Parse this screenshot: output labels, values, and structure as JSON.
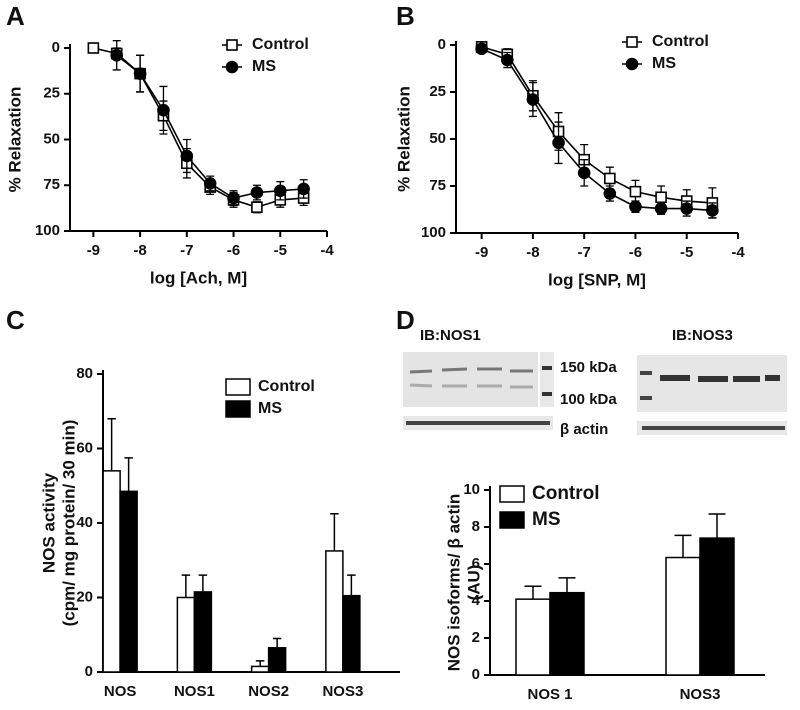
{
  "chart_data": [
    {
      "type": "line",
      "panel_label": "A",
      "xlabel": "log [Ach, M]",
      "ylabel": "% Relaxation",
      "x": [
        -9,
        -8.5,
        -8,
        -7.5,
        -7,
        -6.5,
        -6,
        -5.5,
        -5,
        -4.5
      ],
      "series": [
        {
          "name": "Control",
          "color": "#000000",
          "marker": "square",
          "fill": "#ffffff",
          "values": [
            0,
            3,
            14,
            37,
            63,
            76,
            83,
            87,
            83,
            82
          ],
          "errors": [
            0,
            3,
            10,
            8,
            8,
            4,
            4,
            3,
            4,
            4
          ]
        },
        {
          "name": "MS",
          "color": "#000000",
          "marker": "circle",
          "fill": "#000000",
          "values": [
            null,
            4,
            14,
            34,
            59,
            74,
            82,
            79,
            78,
            77
          ],
          "errors": [
            null,
            8,
            10,
            13,
            9,
            4,
            4,
            4,
            5,
            5
          ]
        }
      ],
      "xlim": [
        -9.5,
        -4
      ],
      "xticks": [
        -9,
        -8,
        -7,
        -6,
        -5,
        -4
      ],
      "ylim": [
        0,
        100
      ],
      "y_reversed": true,
      "yticks": [
        0,
        25,
        50,
        75,
        100
      ]
    },
    {
      "type": "line",
      "panel_label": "B",
      "xlabel": "log [SNP, M]",
      "ylabel": "% Relaxation",
      "x": [
        -9,
        -8.5,
        -8,
        -7.5,
        -7,
        -6.5,
        -6,
        -5.5,
        -5,
        -4.5
      ],
      "series": [
        {
          "name": "Control",
          "color": "#000000",
          "marker": "square",
          "fill": "#ffffff",
          "values": [
            1,
            5,
            27,
            46,
            61,
            71,
            78,
            81,
            83,
            84
          ],
          "errors": [
            2,
            3,
            8,
            10,
            8,
            6,
            6,
            6,
            6,
            8
          ]
        },
        {
          "name": "MS",
          "color": "#000000",
          "marker": "circle",
          "fill": "#000000",
          "values": [
            2,
            8,
            29,
            52,
            68,
            79,
            86,
            87,
            87,
            88
          ],
          "errors": [
            2,
            4,
            9,
            11,
            7,
            4,
            3,
            3,
            4,
            4
          ]
        }
      ],
      "xlim": [
        -9.5,
        -4
      ],
      "xticks": [
        -9,
        -8,
        -7,
        -6,
        -5,
        -4
      ],
      "ylim": [
        0,
        100
      ],
      "y_reversed": true,
      "yticks": [
        0,
        25,
        50,
        75,
        100
      ]
    },
    {
      "type": "bar",
      "panel_label": "C",
      "ylabel": [
        "NOS activity",
        "(cpm/ mg protein/ 30 min)"
      ],
      "categories": [
        "NOS",
        "NOS1",
        "NOS2",
        "NOS3"
      ],
      "series": [
        {
          "name": "Control",
          "color": "#ffffff",
          "values": [
            54,
            20,
            1.5,
            32.5
          ],
          "errors": [
            14,
            6,
            1.5,
            10
          ]
        },
        {
          "name": "MS",
          "color": "#000000",
          "values": [
            48.5,
            21.5,
            6.5,
            20.5
          ],
          "errors": [
            9,
            4.5,
            2.5,
            5.5
          ]
        }
      ],
      "ylim": [
        0,
        80
      ],
      "yticks": [
        0,
        20,
        40,
        60,
        80
      ]
    },
    {
      "type": "bar",
      "panel_label": "D",
      "ylabel": [
        "NOS isoforms/ β actin",
        "(AU)"
      ],
      "categories": [
        "NOS 1",
        "NOS3"
      ],
      "series": [
        {
          "name": "Control",
          "color": "#ffffff",
          "values": [
            4.1,
            6.35
          ],
          "errors": [
            0.7,
            1.2
          ]
        },
        {
          "name": "MS",
          "color": "#000000",
          "values": [
            4.45,
            7.4
          ],
          "errors": [
            0.8,
            1.3
          ]
        }
      ],
      "ylim": [
        0,
        10
      ],
      "yticks": [
        0,
        2,
        4,
        6,
        8,
        10
      ],
      "blot": {
        "antibodies": [
          "IB:NOS1",
          "IB:NOS3"
        ],
        "markers": [
          "150 kDa",
          "100 kDa"
        ],
        "loading": "β actin"
      }
    }
  ]
}
